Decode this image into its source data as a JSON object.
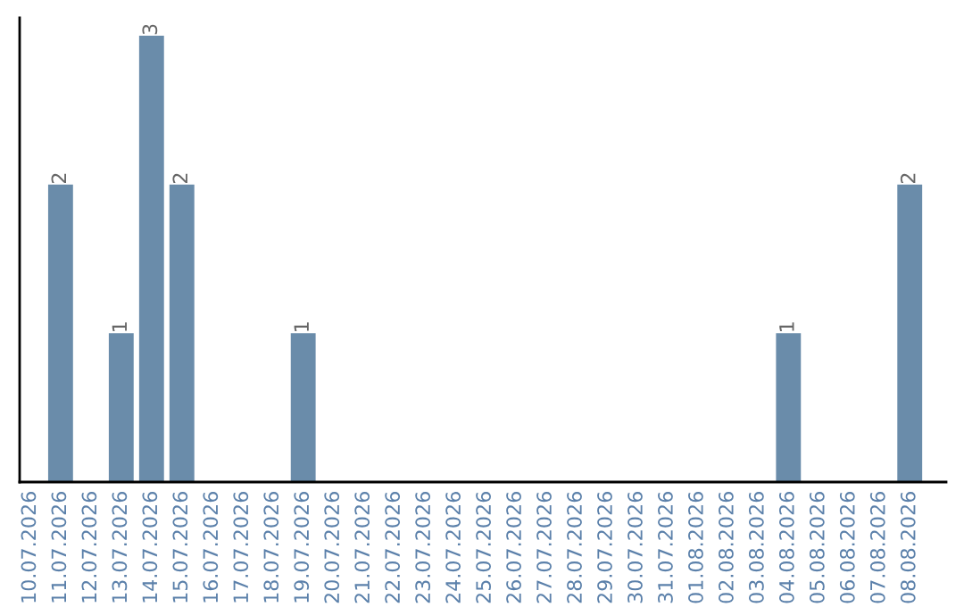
{
  "chart_data": {
    "type": "bar",
    "categories": [
      "10.07.2026",
      "11.07.2026",
      "12.07.2026",
      "13.07.2026",
      "14.07.2026",
      "15.07.2026",
      "16.07.2026",
      "17.07.2026",
      "18.07.2026",
      "19.07.2026",
      "20.07.2026",
      "21.07.2026",
      "22.07.2026",
      "23.07.2026",
      "24.07.2026",
      "25.07.2026",
      "26.07.2026",
      "27.07.2026",
      "28.07.2026",
      "29.07.2026",
      "30.07.2026",
      "31.07.2026",
      "01.08.2026",
      "02.08.2026",
      "03.08.2026",
      "04.08.2026",
      "05.08.2026",
      "06.08.2026",
      "07.08.2026",
      "08.08.2026"
    ],
    "values": [
      0,
      2,
      0,
      1,
      3,
      2,
      0,
      0,
      0,
      1,
      0,
      0,
      0,
      0,
      0,
      0,
      0,
      0,
      0,
      0,
      0,
      0,
      0,
      0,
      0,
      1,
      0,
      0,
      0,
      2
    ],
    "value_labels": [
      null,
      "2",
      null,
      "1",
      "3",
      "2",
      null,
      null,
      null,
      "1",
      null,
      null,
      null,
      null,
      null,
      null,
      null,
      null,
      null,
      null,
      null,
      null,
      null,
      null,
      null,
      "1",
      null,
      null,
      null,
      "2"
    ],
    "color": "#6a8caa",
    "tick_labels": "x",
    "grid": false,
    "legend": false
  }
}
